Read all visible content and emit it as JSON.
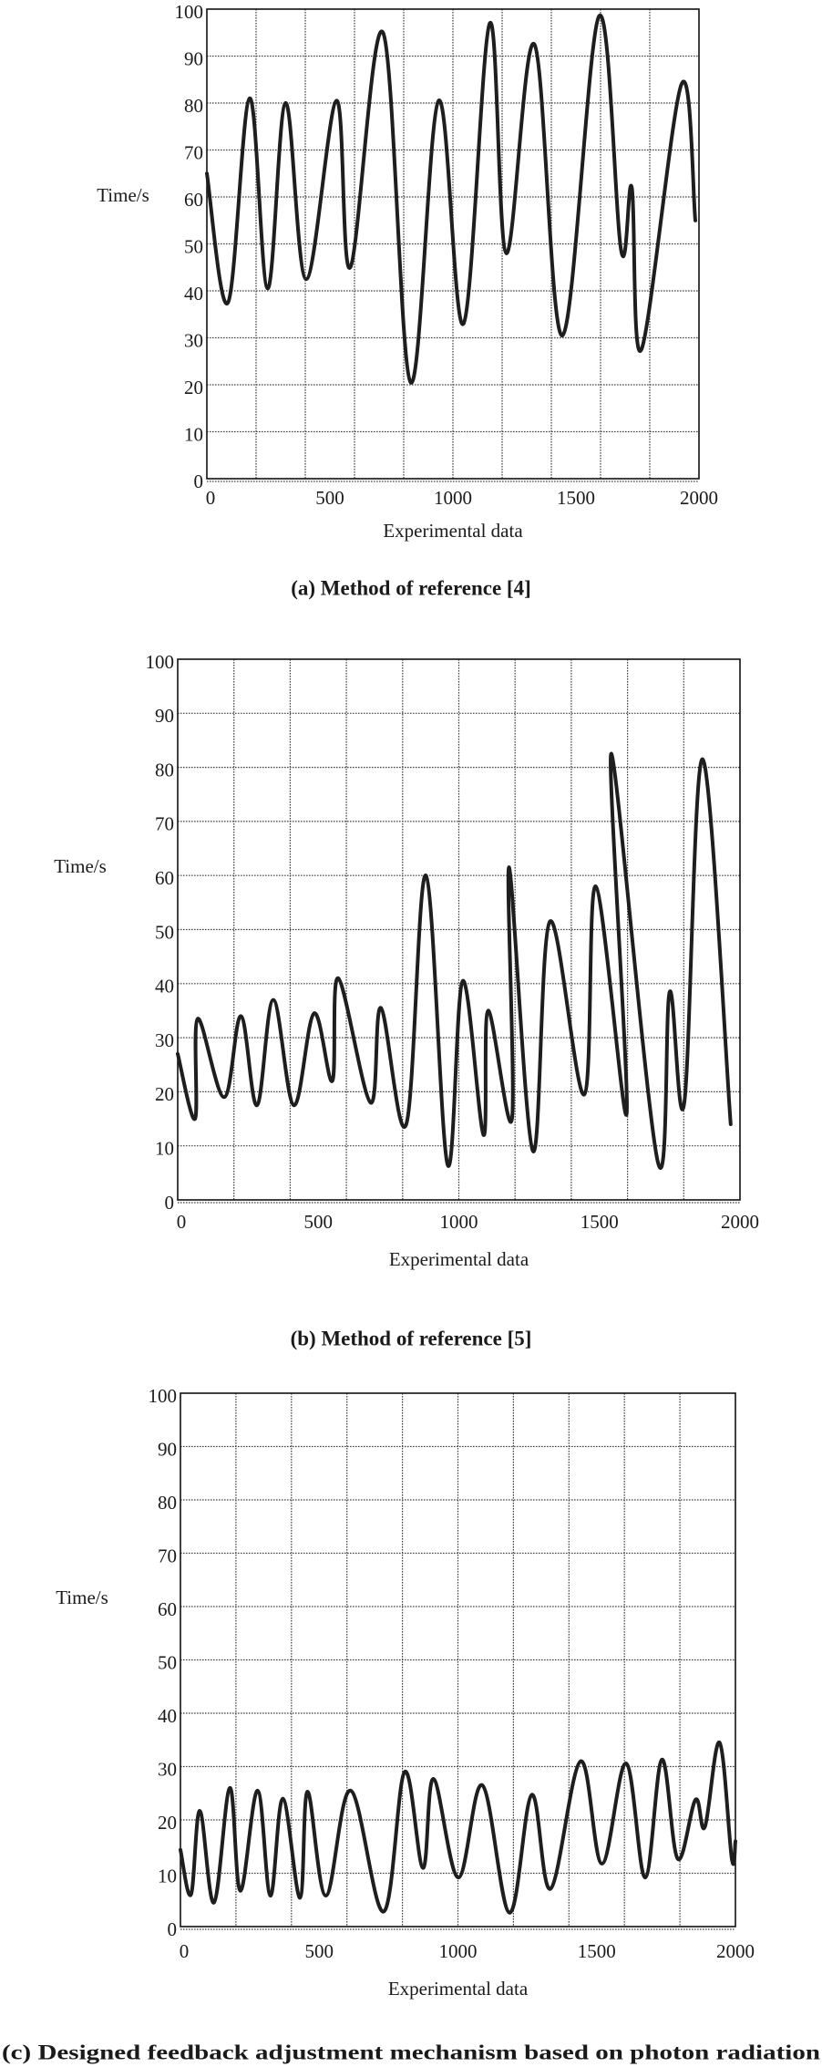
{
  "colors": {
    "line": "#1e1e1e",
    "grid": "#444444",
    "text": "#1a1a1a"
  },
  "chart_data": [
    {
      "type": "line",
      "title": "(a) Method of reference [4]",
      "xlabel": "Experimental data",
      "ylabel": "Time/s",
      "xlim": [
        0,
        2000
      ],
      "ylim": [
        0,
        100
      ],
      "grid": true,
      "xticks": [
        0,
        500,
        1000,
        1500,
        2000
      ],
      "xtick_labels": [
        "0",
        "500",
        "1000",
        "1500",
        "2000"
      ],
      "yticks": [
        0,
        10,
        20,
        30,
        40,
        50,
        60,
        70,
        80,
        90,
        100
      ],
      "ytick_labels": [
        "0",
        "10",
        "20",
        "30",
        "40",
        "50",
        "60",
        "70",
        "80",
        "90",
        "100"
      ],
      "series": [
        {
          "name": "Method of reference [4]",
          "x": [
            0,
            86,
            174,
            247,
            320,
            404,
            527,
            583,
            716,
            828,
            942,
            1043,
            1150,
            1217,
            1331,
            1445,
            1594,
            1684,
            1727,
            1766,
            1929,
            1985
          ],
          "y": [
            65,
            37.5,
            81,
            40.5,
            80,
            42.5,
            80.5,
            45,
            95,
            20.5,
            80.5,
            33,
            97,
            48,
            92.5,
            30.5,
            98.5,
            48.5,
            62,
            27.5,
            84,
            55
          ]
        }
      ]
    },
    {
      "type": "line",
      "title": "(b) Method of reference [5]",
      "xlabel": "Experimental data",
      "ylabel": "Time/s",
      "xlim": [
        0,
        2000
      ],
      "ylim": [
        0,
        100
      ],
      "grid": true,
      "xticks": [
        0,
        500,
        1000,
        1500,
        2000
      ],
      "xtick_labels": [
        "0",
        "500",
        "1000",
        "1500",
        "2000"
      ],
      "yticks": [
        0,
        10,
        20,
        30,
        40,
        50,
        60,
        70,
        80,
        90,
        100
      ],
      "ytick_labels": [
        "0",
        "10",
        "20",
        "30",
        "40",
        "50",
        "60",
        "70",
        "80",
        "90",
        "100"
      ],
      "series": [
        {
          "name": "Method of reference [5]",
          "x": [
            0,
            62,
            71,
            165,
            225,
            282,
            340,
            413,
            485,
            550,
            571,
            686,
            723,
            813,
            883,
            960,
            1014,
            1088,
            1104,
            1189,
            1179,
            1264,
            1324,
            1446,
            1487,
            1597,
            1543,
            1708,
            1750,
            1802,
            1867,
            1967
          ],
          "y": [
            27,
            15,
            33.5,
            19,
            34,
            17.5,
            37,
            17.5,
            34.5,
            22,
            41,
            18,
            35.5,
            14,
            60,
            6.5,
            40.5,
            12,
            35,
            15,
            61.5,
            9,
            51.5,
            19.5,
            58,
            16,
            82.5,
            7,
            38.5,
            18,
            81.5,
            14
          ]
        }
      ]
    },
    {
      "type": "line",
      "title": "(c) Designed feedback adjustment mechanism based on photon radiation",
      "xlabel": "Experimental data",
      "ylabel": "Time/s",
      "xlim": [
        0,
        2000
      ],
      "ylim": [
        0,
        100
      ],
      "grid": true,
      "xticks": [
        0,
        500,
        1000,
        1500,
        2000
      ],
      "xtick_labels": [
        "0",
        "500",
        "1000",
        "1500",
        "2000"
      ],
      "yticks": [
        0,
        10,
        20,
        30,
        40,
        50,
        60,
        70,
        80,
        90,
        100
      ],
      "ytick_labels": [
        "0",
        "10",
        "20",
        "30",
        "40",
        "50",
        "60",
        "70",
        "80",
        "90",
        "100"
      ],
      "series": [
        {
          "name": "Designed feedback adjustment mechanism",
          "x": [
            0,
            38,
            70,
            121,
            178,
            216,
            278,
            324,
            369,
            431,
            458,
            524,
            613,
            732,
            808,
            874,
            912,
            1001,
            1088,
            1186,
            1266,
            1334,
            1442,
            1519,
            1606,
            1675,
            1735,
            1792,
            1856,
            1890,
            1943,
            1987,
            2000
          ],
          "y": [
            14.4,
            6,
            21.7,
            4.5,
            26,
            6.7,
            25.5,
            5.8,
            24,
            5.4,
            25.3,
            5.8,
            25.5,
            2.8,
            29,
            11,
            27.7,
            9.2,
            26.5,
            2.6,
            24.7,
            7.1,
            31,
            11.8,
            30.6,
            9.2,
            31.3,
            12.7,
            23.8,
            18.7,
            34.5,
            12.7,
            16
          ]
        }
      ]
    }
  ]
}
